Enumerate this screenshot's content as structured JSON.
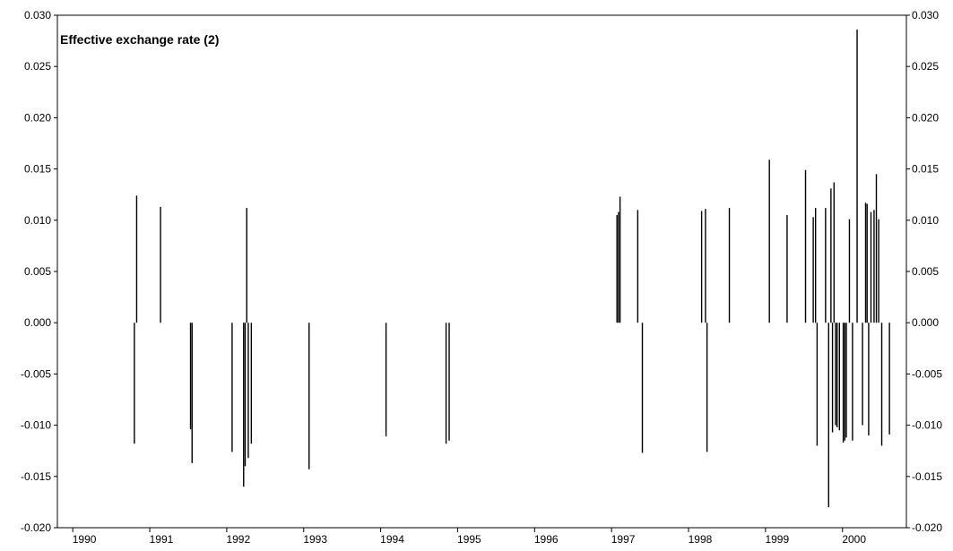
{
  "chart_data": {
    "type": "bar",
    "title": "Effective exchange rate (2)",
    "xlabel": "",
    "ylabel": "",
    "xlim": [
      1989.8,
      2000.83
    ],
    "ylim": [
      -0.02,
      0.03
    ],
    "y_ticks": [
      "0.030",
      "0.025",
      "0.020",
      "0.015",
      "0.010",
      "0.005",
      "0.000",
      "-0.005",
      "-0.010",
      "-0.015",
      "-0.020"
    ],
    "x_ticks": [
      "1990",
      "1991",
      "1992",
      "1993",
      "1994",
      "1995",
      "1996",
      "1997",
      "1998",
      "1999",
      "2000"
    ],
    "bar_color": "#000000",
    "grid": false,
    "legend": "none",
    "points": [
      {
        "x": 1990.8,
        "y": -0.0118
      },
      {
        "x": 1990.83,
        "y": 0.0124
      },
      {
        "x": 1991.14,
        "y": 0.0113
      },
      {
        "x": 1991.53,
        "y": -0.0104
      },
      {
        "x": 1991.55,
        "y": -0.0137
      },
      {
        "x": 1992.07,
        "y": -0.0126
      },
      {
        "x": 1992.22,
        "y": -0.016
      },
      {
        "x": 1992.24,
        "y": -0.014
      },
      {
        "x": 1992.26,
        "y": 0.0112
      },
      {
        "x": 1992.28,
        "y": -0.0132
      },
      {
        "x": 1992.32,
        "y": -0.0118
      },
      {
        "x": 1993.07,
        "y": -0.0143
      },
      {
        "x": 1994.07,
        "y": -0.0111
      },
      {
        "x": 1994.85,
        "y": -0.0118
      },
      {
        "x": 1994.89,
        "y": -0.0115
      },
      {
        "x": 1997.07,
        "y": 0.0105
      },
      {
        "x": 1997.09,
        "y": 0.0108
      },
      {
        "x": 1997.11,
        "y": 0.0123
      },
      {
        "x": 1997.34,
        "y": 0.011
      },
      {
        "x": 1997.4,
        "y": -0.0127
      },
      {
        "x": 1998.17,
        "y": 0.0109
      },
      {
        "x": 1998.22,
        "y": 0.0111
      },
      {
        "x": 1998.24,
        "y": -0.0126
      },
      {
        "x": 1998.53,
        "y": 0.0112
      },
      {
        "x": 1999.05,
        "y": 0.0159
      },
      {
        "x": 1999.28,
        "y": 0.0105
      },
      {
        "x": 1999.52,
        "y": 0.0149
      },
      {
        "x": 1999.62,
        "y": 0.0103
      },
      {
        "x": 1999.65,
        "y": 0.0112
      },
      {
        "x": 1999.67,
        "y": -0.012
      },
      {
        "x": 1999.78,
        "y": 0.0112
      },
      {
        "x": 1999.82,
        "y": -0.018
      },
      {
        "x": 1999.85,
        "y": 0.0131
      },
      {
        "x": 1999.87,
        "y": -0.0107
      },
      {
        "x": 1999.89,
        "y": 0.0137
      },
      {
        "x": 1999.91,
        "y": -0.01
      },
      {
        "x": 1999.93,
        "y": -0.0102
      },
      {
        "x": 1999.96,
        "y": -0.0105
      },
      {
        "x": 2000.01,
        "y": -0.0117
      },
      {
        "x": 2000.03,
        "y": -0.0115
      },
      {
        "x": 2000.05,
        "y": -0.0112
      },
      {
        "x": 2000.09,
        "y": 0.0101
      },
      {
        "x": 2000.13,
        "y": -0.0115
      },
      {
        "x": 2000.19,
        "y": 0.0286
      },
      {
        "x": 2000.26,
        "y": -0.01
      },
      {
        "x": 2000.3,
        "y": 0.0117
      },
      {
        "x": 2000.32,
        "y": 0.0116
      },
      {
        "x": 2000.34,
        "y": -0.011
      },
      {
        "x": 2000.37,
        "y": 0.0108
      },
      {
        "x": 2000.41,
        "y": 0.011
      },
      {
        "x": 2000.44,
        "y": 0.0145
      },
      {
        "x": 2000.47,
        "y": 0.0101
      },
      {
        "x": 2000.51,
        "y": -0.012
      },
      {
        "x": 2000.61,
        "y": -0.0109
      }
    ]
  }
}
